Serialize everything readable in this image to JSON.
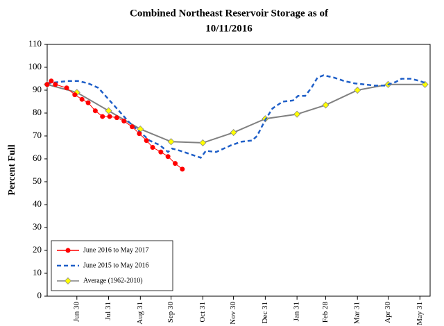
{
  "chart_data": {
    "type": "line",
    "title": "Combined Northeast Reservoir Storage as of",
    "subtitle": "10/11/2016",
    "y_label": "Percent Full",
    "xlim": [
      0,
      374
    ],
    "xticks": [
      {
        "value": 29,
        "label": "Jun 30"
      },
      {
        "value": 60,
        "label": "Jul 31"
      },
      {
        "value": 91,
        "label": "Aug 31"
      },
      {
        "value": 121,
        "label": "Sep 30"
      },
      {
        "value": 152,
        "label": "Oct 31"
      },
      {
        "value": 182,
        "label": "Nov 30"
      },
      {
        "value": 213,
        "label": "Dec 31"
      },
      {
        "value": 244,
        "label": "Jan 31"
      },
      {
        "value": 272,
        "label": "Feb 28"
      },
      {
        "value": 303,
        "label": "Mar 31"
      },
      {
        "value": 333,
        "label": "Apr 30"
      },
      {
        "value": 364,
        "label": "May 31"
      }
    ],
    "ylim": [
      0,
      110
    ],
    "yticks": [
      0,
      10,
      20,
      30,
      40,
      50,
      60,
      70,
      80,
      90,
      100,
      110
    ],
    "grid": false,
    "legend": "lower left",
    "series": [
      {
        "name": "June 2016 to May 2017",
        "color": "#ff0000",
        "marker": "circle",
        "dash": false,
        "x": [
          0,
          4,
          8,
          19,
          27,
          34,
          40,
          47,
          54,
          61,
          68,
          75,
          83,
          90,
          97,
          103,
          111,
          118,
          125,
          132
        ],
        "values": [
          92.5,
          94,
          92.5,
          91,
          88,
          86,
          84.5,
          81,
          78.5,
          78.5,
          78,
          76.5,
          74,
          71,
          68,
          65,
          63,
          61,
          58,
          55.5
        ]
      },
      {
        "name": "June 2015 to May 2016",
        "color": "#1f5fc8",
        "marker": "none",
        "dash": true,
        "x": [
          0,
          10,
          20,
          30,
          40,
          50,
          60,
          70,
          80,
          90,
          100,
          110,
          118,
          122,
          130,
          140,
          150,
          155,
          165,
          170,
          180,
          190,
          200,
          205,
          213,
          220,
          230,
          240,
          245,
          252,
          258,
          264,
          270,
          280,
          290,
          300,
          310,
          320,
          330,
          340,
          346,
          355,
          364,
          370
        ],
        "values": [
          93,
          93.5,
          94,
          94,
          93,
          91,
          86,
          81,
          76,
          72,
          68,
          66,
          63,
          64.5,
          63.5,
          62,
          60.5,
          63.5,
          63,
          64,
          66,
          67.5,
          68,
          70,
          77,
          82,
          85,
          85.5,
          87.5,
          87.5,
          91,
          95.5,
          96.5,
          95.5,
          94,
          93,
          92.5,
          92,
          92,
          93.5,
          95,
          95,
          94,
          93
        ]
      },
      {
        "name": "Average (1962-2010)",
        "color": "#808080",
        "marker": "diamond",
        "marker_color": "#ffff00",
        "dash": false,
        "x": [
          0,
          29,
          60,
          91,
          121,
          152,
          182,
          213,
          244,
          272,
          303,
          333,
          369
        ],
        "values": [
          92.5,
          89,
          81,
          73,
          67.5,
          67,
          71.5,
          77.5,
          79.5,
          83.5,
          90,
          92.5,
          92.5
        ]
      }
    ]
  }
}
